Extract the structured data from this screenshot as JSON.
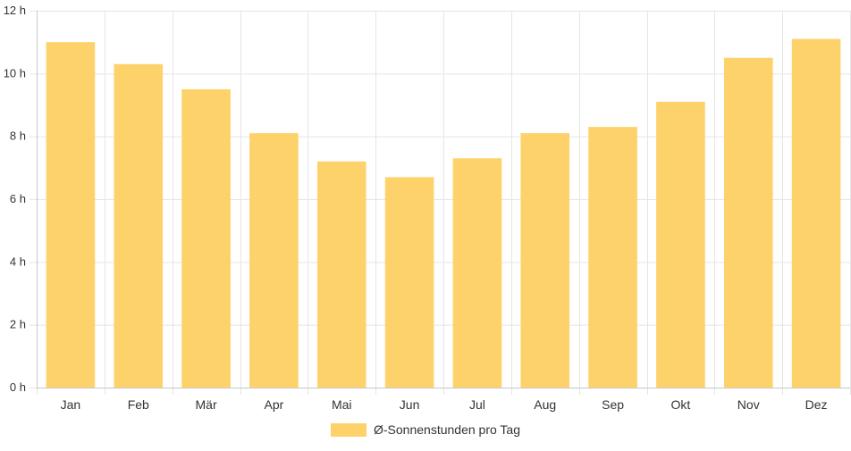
{
  "chart_data": {
    "type": "bar",
    "categories": [
      "Jan",
      "Feb",
      "Mär",
      "Apr",
      "Mai",
      "Jun",
      "Jul",
      "Aug",
      "Sep",
      "Okt",
      "Nov",
      "Dez"
    ],
    "series": [
      {
        "name": "Ø-Sonnenstunden pro Tag",
        "values": [
          11.0,
          10.3,
          9.5,
          8.1,
          7.2,
          6.7,
          7.3,
          8.1,
          8.3,
          9.1,
          10.5,
          11.1
        ],
        "color": "#fdd26a"
      }
    ],
    "ylim": [
      0,
      12
    ],
    "yticks": [
      0,
      2,
      4,
      6,
      8,
      10,
      12
    ],
    "y_tick_suffix": " h",
    "grid": true,
    "legend": "bottom-center",
    "grid_color": "#e5e5e5",
    "axis_color": "#c8c8c8"
  }
}
